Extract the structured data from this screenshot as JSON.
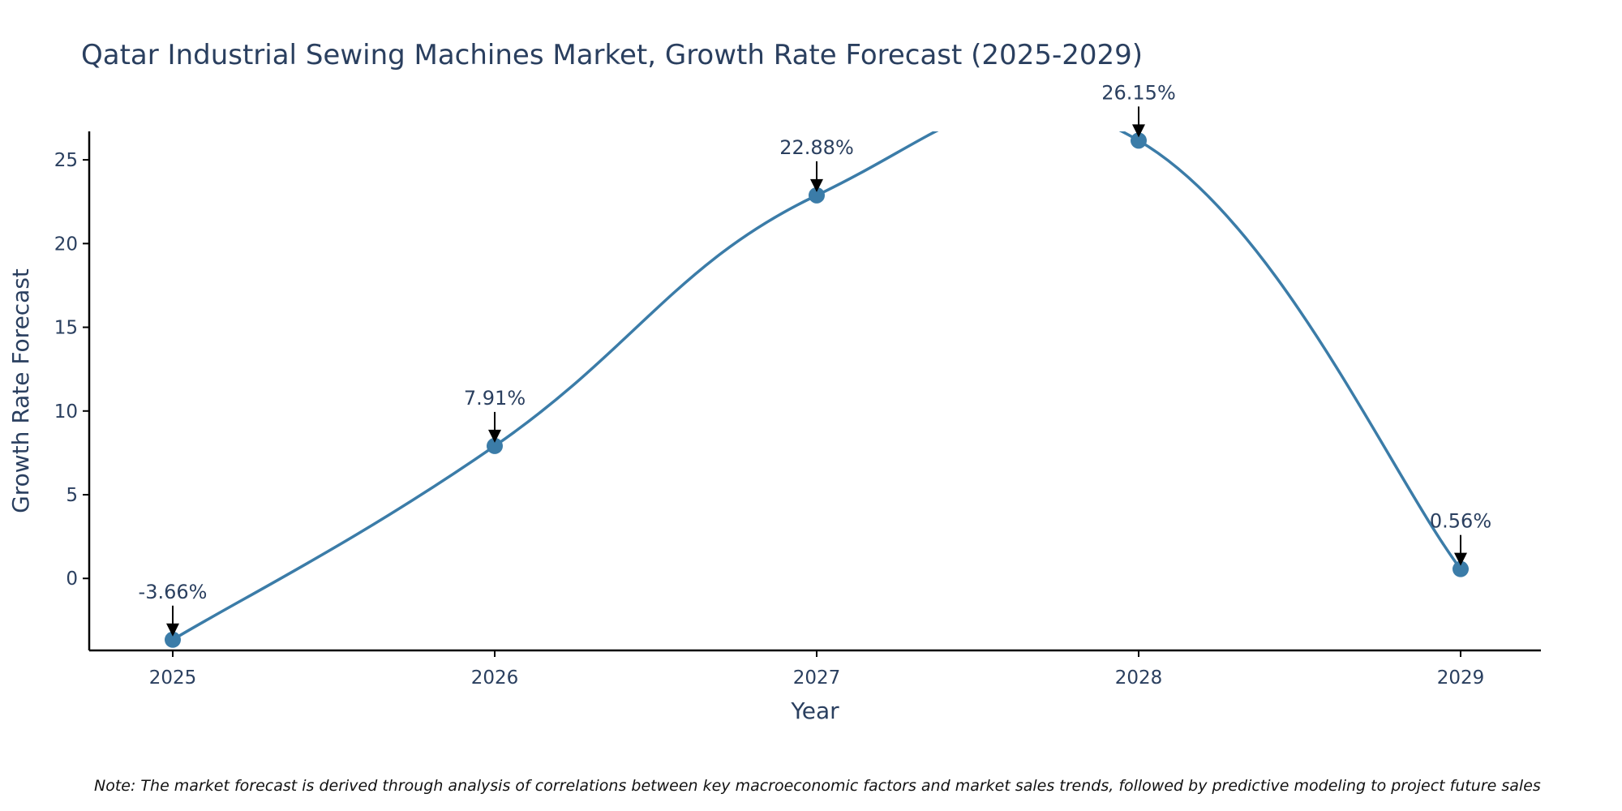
{
  "chart_data": {
    "type": "line",
    "title": "Qatar Industrial Sewing Machines Market, Growth Rate Forecast (2025-2029)",
    "xlabel": "Year",
    "ylabel": "Growth Rate Forecast",
    "categories": [
      "2025",
      "2026",
      "2027",
      "2028",
      "2029"
    ],
    "series": [
      {
        "name": "Growth Rate Forecast",
        "values": [
          -3.66,
          7.91,
          22.88,
          26.15,
          0.56
        ],
        "labels": [
          "-3.66%",
          "7.91%",
          "22.88%",
          "26.15%",
          "0.56%"
        ]
      }
    ],
    "ylim": [
      -4.3,
      26.7
    ],
    "yticks": [
      0,
      5,
      10,
      15,
      20,
      25
    ],
    "ytick_labels": [
      "0",
      "5",
      "10",
      "15",
      "20",
      "25"
    ],
    "line_shape": "spline",
    "grid": false,
    "legend": false,
    "colors": {
      "line": "#3b7ca8",
      "marker": "#3b7ca8",
      "axis": "#000000",
      "text": "#2a3f5f",
      "arrow": "#000000"
    },
    "note": "Note: The market forecast is derived through analysis of correlations between key macroeconomic factors and market sales trends, followed by predictive modeling to project future sales"
  }
}
